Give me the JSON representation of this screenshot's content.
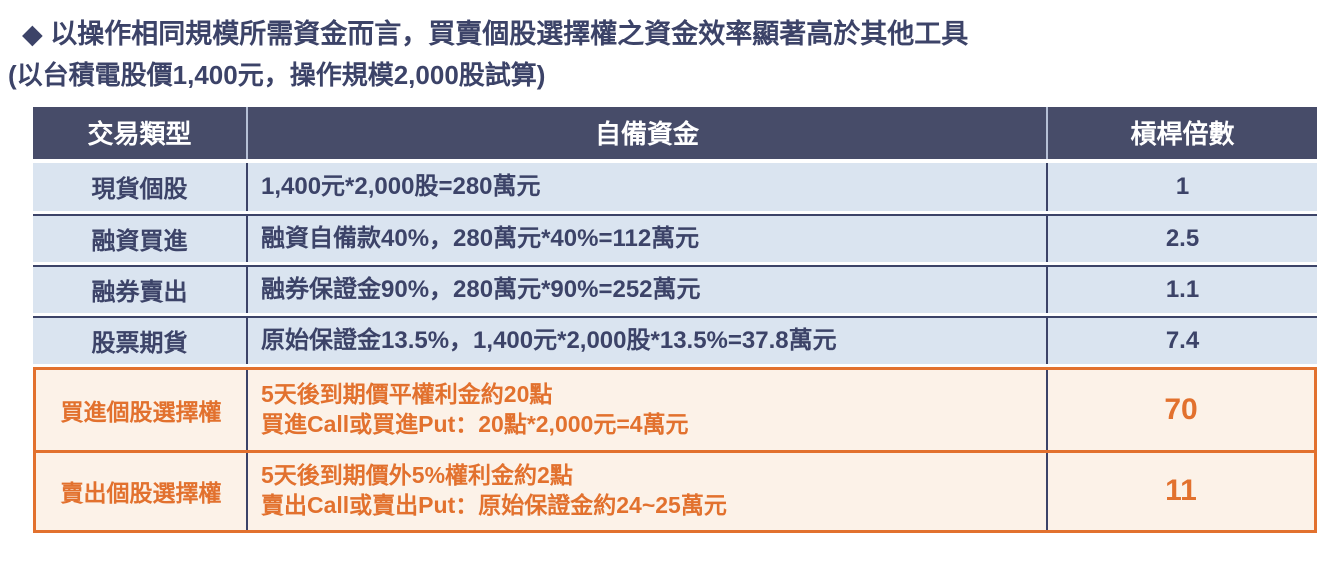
{
  "page": {
    "title": "◆ 以操作相同規模所需資金而言，買賣個股選擇權之資金效率顯著高於其他工具",
    "subtitle": "(以台積電股價1,400元，操作規模2,000股試算)"
  },
  "table": {
    "headers": [
      "交易類型",
      "自備資金",
      "槓桿倍數"
    ],
    "rows": [
      {
        "type": "現貨個股",
        "capital": [
          "1,400元*2,000股=280萬元"
        ],
        "leverage": "1",
        "highlight": false
      },
      {
        "type": "融資買進",
        "capital": [
          "融資自備款40%，280萬元*40%=112萬元"
        ],
        "leverage": "2.5",
        "highlight": false
      },
      {
        "type": "融券賣出",
        "capital": [
          "融券保證金90%，280萬元*90%=252萬元"
        ],
        "leverage": "1.1",
        "highlight": false
      },
      {
        "type": "股票期貨",
        "capital": [
          "原始保證金13.5%，1,400元*2,000股*13.5%=37.8萬元"
        ],
        "leverage": "7.4",
        "highlight": false
      },
      {
        "type": "買進個股選擇權",
        "capital": [
          "5天後到期價平權利金約20點",
          "買進Call或買進Put：20點*2,000元=4萬元"
        ],
        "leverage": "70",
        "highlight": true
      },
      {
        "type": "賣出個股選擇權",
        "capital": [
          "5天後到期價外5%權利金約2點",
          "賣出Call或賣出Put：原始保證金約24~25萬元"
        ],
        "leverage": "11",
        "highlight": true
      }
    ]
  },
  "colors": {
    "header_bg": "#474C69",
    "header_text": "#FFFFFF",
    "row_bg": "#DAE4F0",
    "text_dark": "#3C4368",
    "divider_dark": "#3C4368",
    "divider_light": "#B6C0D6",
    "highlight_bg": "#FCF2E8",
    "highlight_accent": "#E2712E"
  }
}
